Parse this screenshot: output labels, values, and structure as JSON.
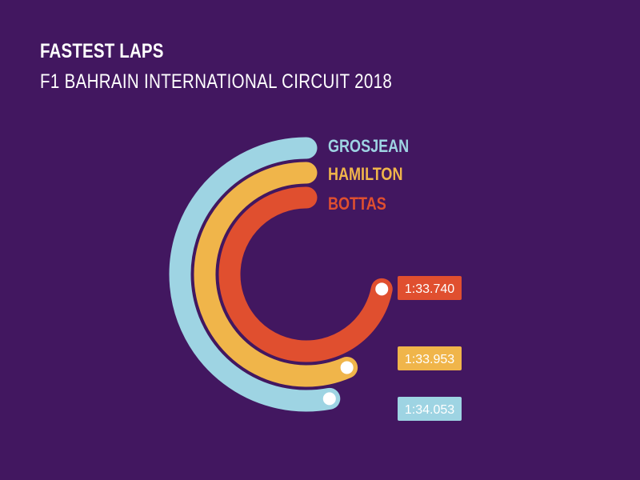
{
  "chart_data": {
    "type": "radial-bar",
    "title": "FASTEST LAPS",
    "subtitle": "F1 BAHRAIN INTERNATIONAL CIRCUIT 2018",
    "series": [
      {
        "name": "GROSJEAN",
        "value": "1:34.053",
        "seconds": 94.053,
        "color": "#9ed4e3"
      },
      {
        "name": "HAMILTON",
        "value": "1:33.953",
        "seconds": 93.953,
        "color": "#f0b54a"
      },
      {
        "name": "BOTTAS",
        "value": "1:33.740",
        "seconds": 93.74,
        "color": "#e04f2f"
      }
    ]
  },
  "colors": {
    "background": "#421760",
    "dot": "#ffffff"
  }
}
